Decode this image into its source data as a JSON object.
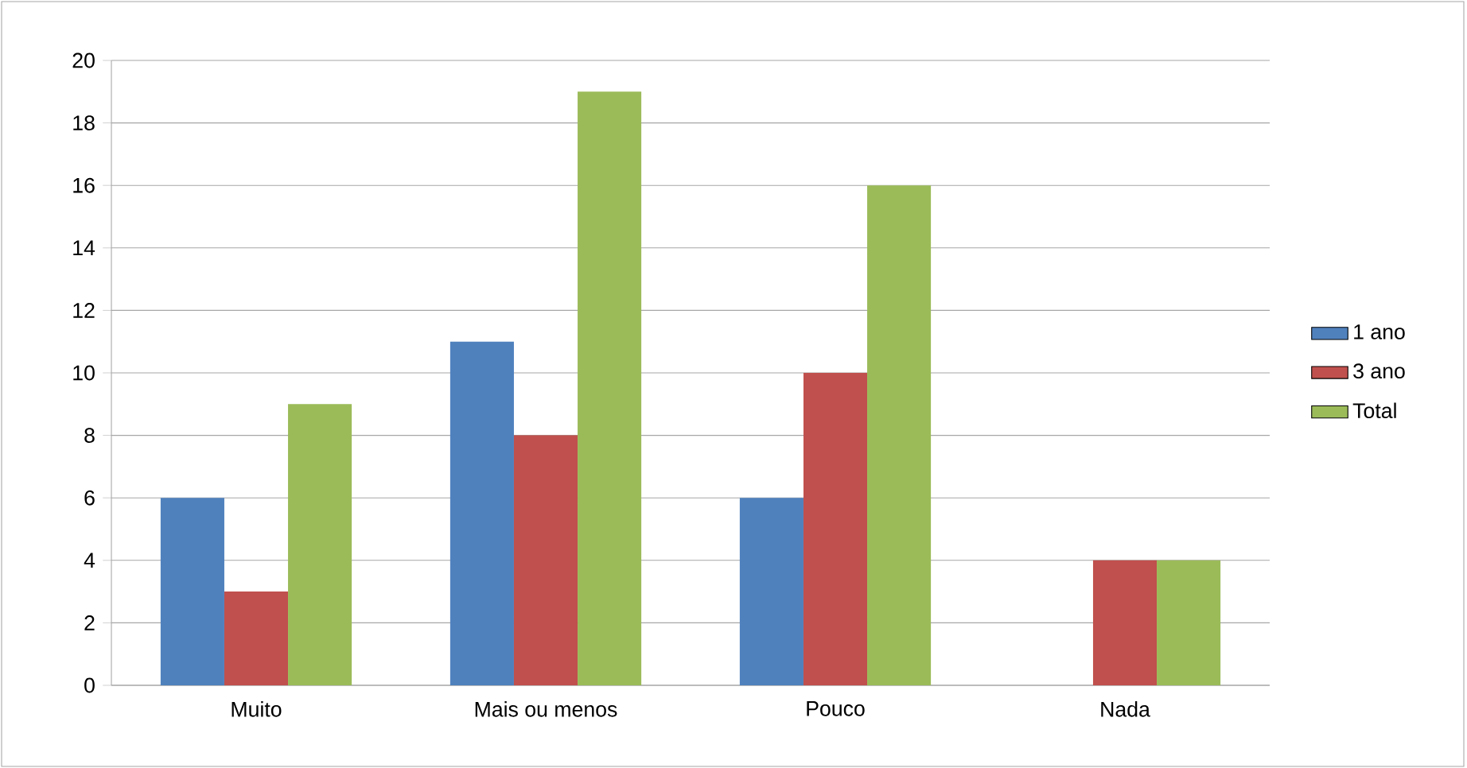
{
  "chart_data": {
    "type": "bar",
    "categories": [
      "Muito",
      "Mais ou menos",
      "Pouco",
      "Nada"
    ],
    "series": [
      {
        "name": "1 ano",
        "color": "#4f81bd",
        "values": [
          6,
          11,
          6,
          0
        ]
      },
      {
        "name": "3 ano",
        "color": "#c0504d",
        "values": [
          3,
          8,
          10,
          4
        ]
      },
      {
        "name": "Total",
        "color": "#9bbb59",
        "values": [
          9,
          19,
          16,
          4
        ]
      }
    ],
    "ylim": [
      0,
      20
    ],
    "yticks": [
      0,
      2,
      4,
      6,
      8,
      10,
      12,
      14,
      16,
      18,
      20
    ],
    "grid": "y",
    "legend": "right"
  }
}
